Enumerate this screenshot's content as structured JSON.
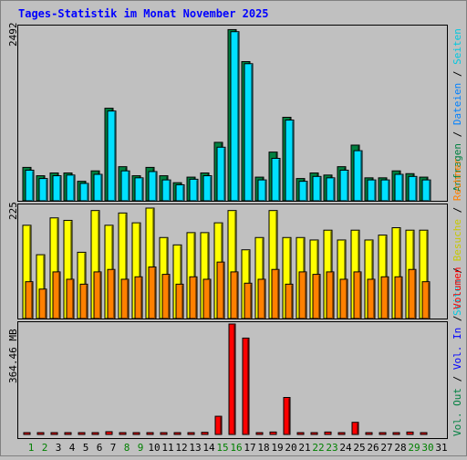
{
  "chart_data": [
    {
      "type": "bar",
      "title": "Tages-Statistik im Monat November 2025",
      "ylabel_max": "2492",
      "ymax": 2492,
      "legend": [
        "Anfragen",
        "Dateien",
        "Seiten"
      ],
      "separator": "/",
      "categories": [
        "1",
        "2",
        "3",
        "4",
        "5",
        "6",
        "7",
        "8",
        "9",
        "10",
        "11",
        "12",
        "13",
        "14",
        "15",
        "16",
        "17",
        "18",
        "19",
        "20",
        "21",
        "22",
        "23",
        "24",
        "25",
        "26",
        "27",
        "28",
        "29",
        "30",
        "31"
      ],
      "weekend_days": [
        "1",
        "2",
        "8",
        "9",
        "15",
        "16",
        "22",
        "23",
        "29",
        "30"
      ],
      "series": [
        {
          "name": "Anfragen",
          "color": "#008040",
          "values": [
            480,
            360,
            400,
            400,
            280,
            430,
            1330,
            490,
            360,
            480,
            360,
            260,
            340,
            400,
            840,
            2460,
            2000,
            340,
            700,
            1200,
            320,
            400,
            370,
            490,
            800,
            330,
            330,
            430,
            390,
            340,
            0
          ]
        },
        {
          "name": "Dateien",
          "color": "#00e0ff",
          "values": [
            440,
            320,
            360,
            370,
            250,
            380,
            1290,
            430,
            330,
            420,
            300,
            230,
            310,
            360,
            770,
            2430,
            1970,
            300,
            610,
            1160,
            280,
            350,
            330,
            440,
            720,
            300,
            300,
            380,
            350,
            300,
            0
          ]
        }
      ]
    },
    {
      "type": "bar",
      "ylabel_max": "225",
      "ymax": 225,
      "legend": [
        "Seiten",
        "Besuche",
        "Rechner"
      ],
      "categories": [
        "1",
        "2",
        "3",
        "4",
        "5",
        "6",
        "7",
        "8",
        "9",
        "10",
        "11",
        "12",
        "13",
        "14",
        "15",
        "16",
        "17",
        "18",
        "19",
        "20",
        "21",
        "22",
        "23",
        "24",
        "25",
        "26",
        "27",
        "28",
        "29",
        "30",
        "31"
      ],
      "series": [
        {
          "name": "Besuche",
          "color": "#ffff00",
          "values": [
            190,
            130,
            205,
            200,
            135,
            220,
            190,
            215,
            195,
            225,
            165,
            150,
            175,
            175,
            195,
            220,
            140,
            165,
            220,
            165,
            165,
            160,
            180,
            160,
            180,
            160,
            170,
            185,
            180,
            180,
            0
          ]
        },
        {
          "name": "Rechner",
          "color": "#ff8000",
          "values": [
            75,
            60,
            95,
            80,
            70,
            95,
            100,
            80,
            85,
            105,
            90,
            70,
            85,
            80,
            115,
            95,
            72,
            80,
            100,
            70,
            95,
            90,
            95,
            80,
            95,
            80,
            85,
            85,
            100,
            75,
            0
          ]
        }
      ]
    },
    {
      "type": "bar",
      "ylabel_max": "364.46 MB",
      "ymax": 364.46,
      "legend": [
        "Vol. Out",
        "Vol. In",
        "Volumen"
      ],
      "categories": [
        "1",
        "2",
        "3",
        "4",
        "5",
        "6",
        "7",
        "8",
        "9",
        "10",
        "11",
        "12",
        "13",
        "14",
        "15",
        "16",
        "17",
        "18",
        "19",
        "20",
        "21",
        "22",
        "23",
        "24",
        "25",
        "26",
        "27",
        "28",
        "29",
        "30",
        "31"
      ],
      "series": [
        {
          "name": "Volumen",
          "color": "#ff0000",
          "values": [
            5,
            5,
            5,
            5,
            5,
            5,
            9,
            5,
            5,
            5,
            5,
            5,
            5,
            7,
            60,
            364.46,
            318,
            5,
            8,
            122,
            5,
            5,
            8,
            6,
            40,
            5,
            5,
            5,
            8,
            6,
            0
          ]
        }
      ]
    }
  ]
}
